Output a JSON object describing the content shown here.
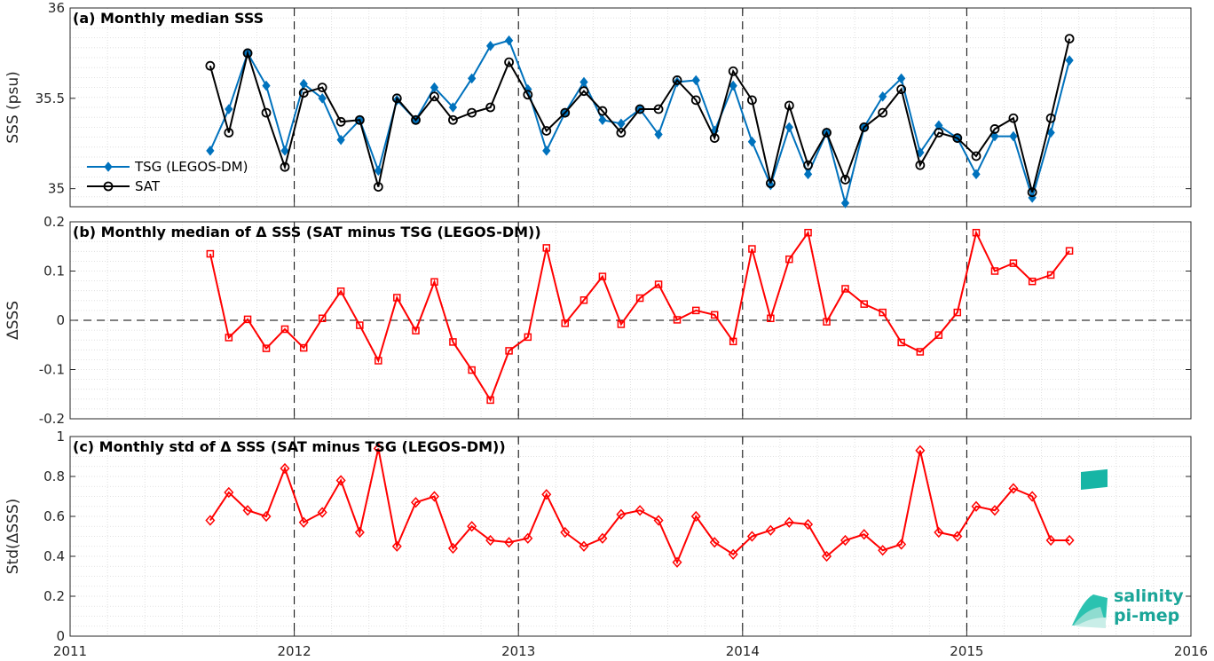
{
  "chart_data": [
    {
      "type": "line",
      "title": "(a) Monthly median SSS",
      "ylabel": "SSS (psu)",
      "xlabel": "",
      "xlim": [
        2011,
        2016
      ],
      "ylim": [
        34.9,
        36
      ],
      "yticks": [
        35,
        35.5,
        36
      ],
      "ytick_labels": [
        "35",
        "35.5",
        "36"
      ],
      "grid": true,
      "legend": "lower-left",
      "x": [
        2011.625,
        2011.708,
        2011.792,
        2011.875,
        2011.958,
        2012.042,
        2012.125,
        2012.208,
        2012.292,
        2012.375,
        2012.458,
        2012.542,
        2012.625,
        2012.708,
        2012.792,
        2012.875,
        2012.958,
        2013.042,
        2013.125,
        2013.208,
        2013.292,
        2013.375,
        2013.458,
        2013.542,
        2013.625,
        2013.708,
        2013.792,
        2013.875,
        2013.958,
        2014.042,
        2014.125,
        2014.208,
        2014.292,
        2014.375,
        2014.458,
        2014.542,
        2014.625,
        2014.708,
        2014.792,
        2014.875,
        2014.958,
        2015.042,
        2015.125,
        2015.208,
        2015.292,
        2015.375,
        2015.458
      ],
      "series": [
        {
          "name": "TSG (LEGOS-DM)",
          "color": "#0072BD",
          "marker": "diamond-filled",
          "values": [
            35.21,
            35.44,
            35.75,
            35.57,
            35.21,
            35.58,
            35.5,
            35.27,
            35.38,
            35.1,
            35.49,
            35.38,
            35.56,
            35.45,
            35.61,
            35.79,
            35.82,
            35.55,
            35.21,
            35.42,
            35.59,
            35.38,
            35.36,
            35.44,
            35.3,
            35.59,
            35.6,
            35.32,
            35.57,
            35.26,
            35.02,
            35.34,
            35.08,
            35.31,
            34.92,
            35.34,
            35.51,
            35.61,
            35.2,
            35.35,
            35.28,
            35.08,
            35.29,
            35.29,
            34.95,
            35.31,
            35.71
          ]
        },
        {
          "name": "SAT",
          "color": "#000000",
          "marker": "circle-open",
          "values": [
            35.68,
            35.31,
            35.75,
            35.42,
            35.12,
            35.53,
            35.56,
            35.37,
            35.38,
            35.01,
            35.5,
            35.38,
            35.51,
            35.38,
            35.42,
            35.45,
            35.7,
            35.52,
            35.32,
            35.42,
            35.54,
            35.43,
            35.31,
            35.44,
            35.44,
            35.6,
            35.49,
            35.28,
            35.65,
            35.49,
            35.03,
            35.46,
            35.13,
            35.31,
            35.05,
            35.34,
            35.42,
            35.55,
            35.13,
            35.31,
            35.28,
            35.18,
            35.33,
            35.39,
            34.98,
            35.39,
            35.83
          ]
        }
      ]
    },
    {
      "type": "line",
      "title": "(b) Monthly median of Δ SSS (SAT minus TSG (LEGOS-DM))",
      "ylabel": "ΔSSS",
      "xlabel": "",
      "xlim": [
        2011,
        2016
      ],
      "ylim": [
        -0.2,
        0.2
      ],
      "yticks": [
        -0.2,
        -0.1,
        0,
        0.1,
        0.2
      ],
      "ytick_labels": [
        "-0.2",
        "-0.1",
        "0",
        "0.1",
        "0.2"
      ],
      "grid": true,
      "zero_line": true,
      "x": [
        2011.625,
        2011.708,
        2011.792,
        2011.875,
        2011.958,
        2012.042,
        2012.125,
        2012.208,
        2012.292,
        2012.375,
        2012.458,
        2012.542,
        2012.625,
        2012.708,
        2012.792,
        2012.875,
        2012.958,
        2013.042,
        2013.125,
        2013.208,
        2013.292,
        2013.375,
        2013.458,
        2013.542,
        2013.625,
        2013.708,
        2013.792,
        2013.875,
        2013.958,
        2014.042,
        2014.125,
        2014.208,
        2014.292,
        2014.375,
        2014.458,
        2014.542,
        2014.625,
        2014.708,
        2014.792,
        2014.875,
        2014.958,
        2015.042,
        2015.125,
        2015.208,
        2015.292,
        2015.375,
        2015.458
      ],
      "series": [
        {
          "color": "#FF0000",
          "marker": "square-open",
          "values": [
            0.135,
            -0.035,
            0.002,
            -0.057,
            -0.018,
            -0.056,
            0.004,
            0.059,
            -0.01,
            -0.082,
            0.046,
            -0.021,
            0.078,
            -0.044,
            -0.101,
            -0.162,
            -0.062,
            -0.034,
            0.147,
            -0.006,
            0.041,
            0.089,
            -0.008,
            0.045,
            0.073,
            0.001,
            0.02,
            0.011,
            -0.043,
            0.145,
            0.004,
            0.124,
            0.178,
            -0.003,
            0.064,
            0.033,
            0.016,
            -0.045,
            -0.064,
            -0.03,
            0.016,
            0.178,
            0.1,
            0.116,
            0.079,
            0.092,
            0.141
          ]
        }
      ]
    },
    {
      "type": "line",
      "title": "(c) Monthly std of Δ SSS (SAT minus TSG (LEGOS-DM))",
      "ylabel": "Std(ΔSSS)",
      "xlabel": "",
      "xlim": [
        2011,
        2016
      ],
      "ylim": [
        0,
        1
      ],
      "yticks": [
        0,
        0.2,
        0.4,
        0.6,
        0.8,
        1
      ],
      "ytick_labels": [
        "0",
        "0.2",
        "0.4",
        "0.6",
        "0.8",
        "1"
      ],
      "xticks": [
        2011,
        2012,
        2013,
        2014,
        2015,
        2016
      ],
      "xtick_labels": [
        "2011",
        "2012",
        "2013",
        "2014",
        "2015",
        "2016"
      ],
      "grid": true,
      "x": [
        2011.625,
        2011.708,
        2011.792,
        2011.875,
        2011.958,
        2012.042,
        2012.125,
        2012.208,
        2012.292,
        2012.375,
        2012.458,
        2012.542,
        2012.625,
        2012.708,
        2012.792,
        2012.875,
        2012.958,
        2013.042,
        2013.125,
        2013.208,
        2013.292,
        2013.375,
        2013.458,
        2013.542,
        2013.625,
        2013.708,
        2013.792,
        2013.875,
        2013.958,
        2014.042,
        2014.125,
        2014.208,
        2014.292,
        2014.375,
        2014.458,
        2014.542,
        2014.625,
        2014.708,
        2014.792,
        2014.875,
        2014.958,
        2015.042,
        2015.125,
        2015.208,
        2015.292,
        2015.375,
        2015.458
      ],
      "series": [
        {
          "color": "#FF0000",
          "marker": "diamond-open",
          "values": [
            0.58,
            0.72,
            0.63,
            0.6,
            0.84,
            0.57,
            0.62,
            0.78,
            0.52,
            0.94,
            0.45,
            0.67,
            0.7,
            0.44,
            0.55,
            0.48,
            0.47,
            0.49,
            0.71,
            0.52,
            0.45,
            0.49,
            0.61,
            0.63,
            0.58,
            0.37,
            0.6,
            0.47,
            0.41,
            0.5,
            0.53,
            0.57,
            0.56,
            0.4,
            0.48,
            0.51,
            0.43,
            0.46,
            0.93,
            0.52,
            0.5,
            0.65,
            0.63,
            0.74,
            0.7,
            0.48,
            0.48
          ]
        }
      ]
    }
  ],
  "logo": {
    "line1": "salinity",
    "line2": "pi-mep",
    "color": "#1aa598"
  }
}
